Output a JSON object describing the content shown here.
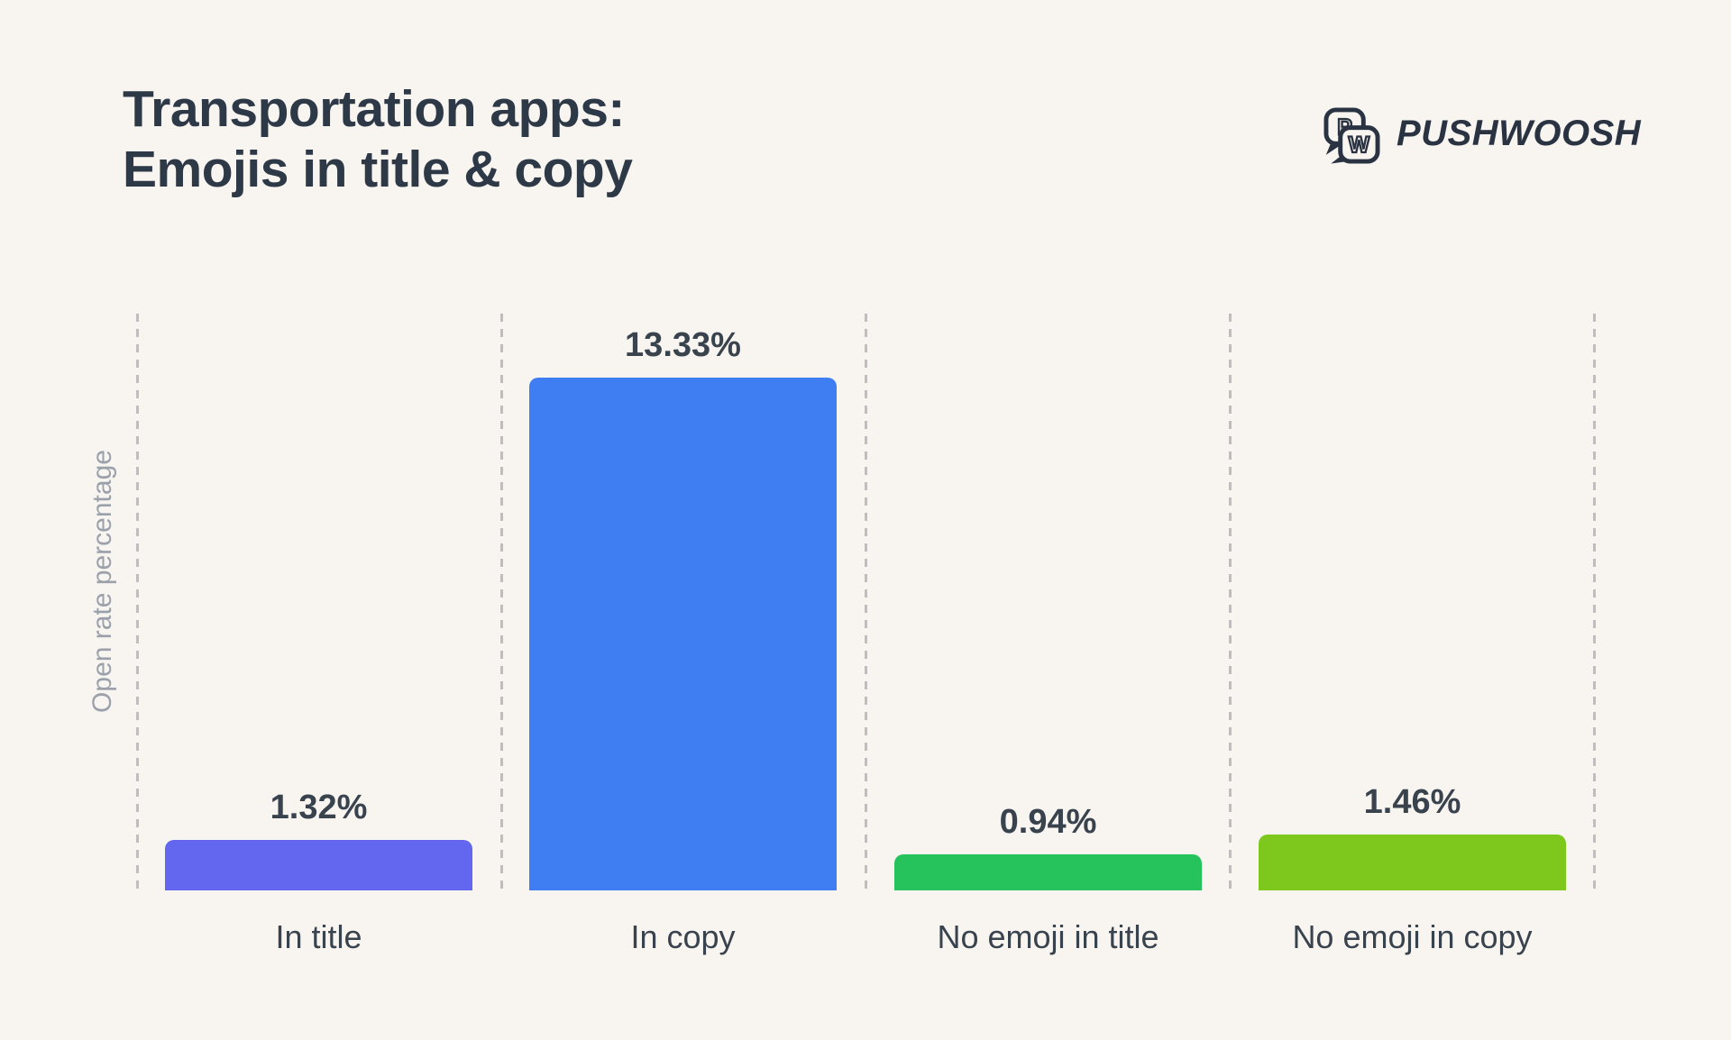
{
  "title": {
    "line1": "Transportation apps:",
    "line2": "Emojis in title & copy"
  },
  "logo": {
    "brand": "PUSHWOOSH",
    "bubble_letters": [
      "P",
      "W"
    ]
  },
  "chart_data": {
    "type": "bar",
    "title": "Transportation apps: Emojis in title & copy",
    "ylabel": "Open rate percentage",
    "xlabel": "",
    "categories": [
      "In title",
      "In copy",
      "No emoji in title",
      "No emoji in copy"
    ],
    "values": [
      1.32,
      13.33,
      0.94,
      1.46
    ],
    "value_labels": [
      "1.32%",
      "13.33%",
      "0.94%",
      "1.46%"
    ],
    "unit": "%",
    "bar_colors": [
      "#6366EE",
      "#3E7EF2",
      "#26C35C",
      "#7EC81D"
    ],
    "ylim": [
      0,
      15
    ],
    "grid": "vertical-dashed-separators",
    "legend": "none"
  },
  "colors": {
    "background": "#F8F4F0",
    "title_text": "#2E3947",
    "label_text": "#39434E",
    "axis_label_text": "#9BA1AB",
    "gridline": "#BDBDC2",
    "logo_ink": "#2A3342"
  }
}
